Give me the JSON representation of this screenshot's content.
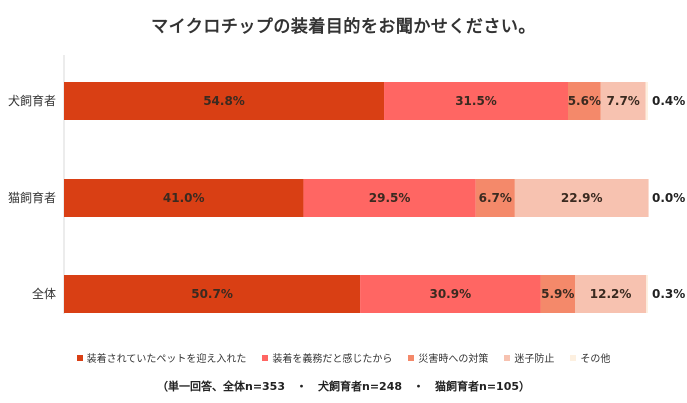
{
  "chart_data": {
    "type": "bar",
    "orientation": "horizontal",
    "stacked": true,
    "title": "マイクロチップの装着目的をお聞かせください。",
    "categories": [
      "犬飼育者",
      "猫飼育者",
      "全体"
    ],
    "series": [
      {
        "name": "装着されていたペットを迎え入れた",
        "values": [
          54.8,
          41.0,
          50.7
        ],
        "labels": [
          "54.8%",
          "41.0%",
          "50.7%"
        ],
        "color": "#d93f14"
      },
      {
        "name": "装着を義務だと感じたから",
        "values": [
          31.5,
          29.5,
          30.9
        ],
        "labels": [
          "31.5%",
          "29.5%",
          "30.9%"
        ],
        "color": "#ff6663"
      },
      {
        "name": "災害時への対策",
        "values": [
          5.6,
          6.7,
          5.9
        ],
        "labels": [
          "5.6%",
          "6.7%",
          "5.9%"
        ],
        "color": "#f4896a"
      },
      {
        "name": "迷子防止",
        "values": [
          7.7,
          22.9,
          12.2
        ],
        "labels": [
          "7.7%",
          "22.9%",
          "12.2%"
        ],
        "color": "#f7c2b0"
      },
      {
        "name": "その他",
        "values": [
          0.4,
          0.0,
          0.3
        ],
        "labels": [
          "0.4%",
          "0.0%",
          "0.3%"
        ],
        "color": "#fdf0e0"
      }
    ],
    "xlim": [
      0,
      100
    ],
    "legend_position": "bottom",
    "grid": false,
    "note": "（単一回答、全体n=353　・　犬飼育者n=248　・　猫飼育者n=105）"
  }
}
